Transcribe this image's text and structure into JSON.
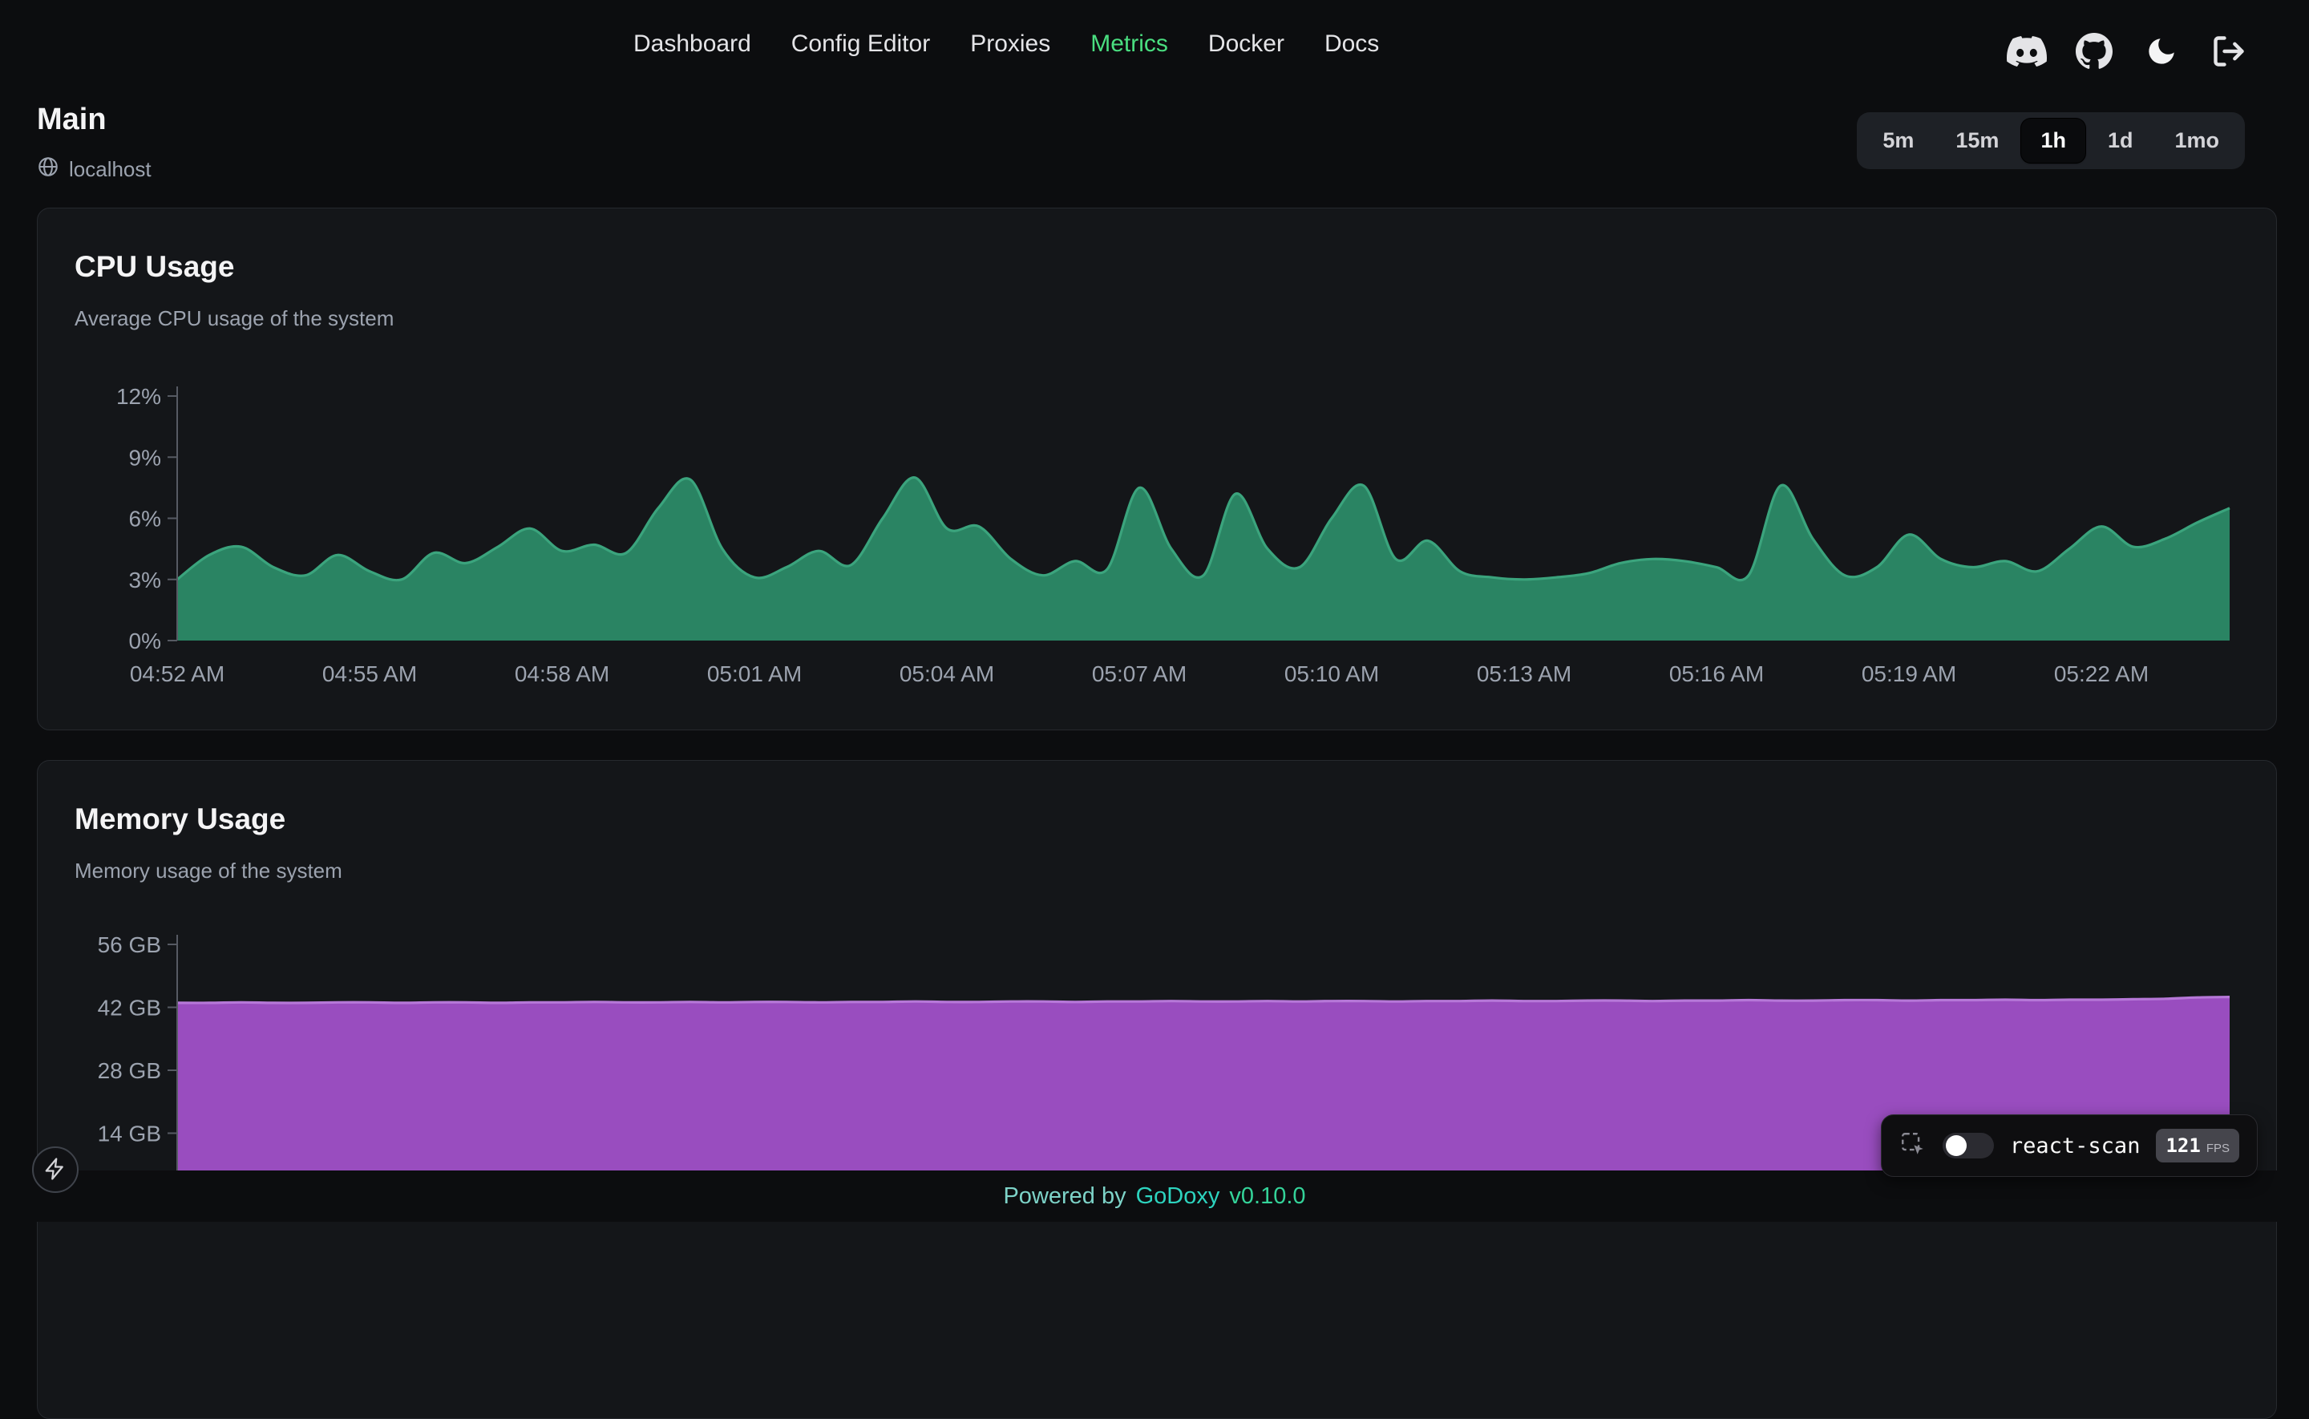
{
  "nav": {
    "items": [
      {
        "label": "Dashboard",
        "active": false
      },
      {
        "label": "Config Editor",
        "active": false
      },
      {
        "label": "Proxies",
        "active": false
      },
      {
        "label": "Metrics",
        "active": true
      },
      {
        "label": "Docker",
        "active": false
      },
      {
        "label": "Docs",
        "active": false
      }
    ],
    "icons": [
      "discord",
      "github",
      "dark-mode-moon",
      "logout"
    ]
  },
  "page": {
    "title": "Main",
    "host": "localhost"
  },
  "time_range": {
    "options": [
      "5m",
      "15m",
      "1h",
      "1d",
      "1mo"
    ],
    "selected": "1h"
  },
  "chart_data": [
    {
      "id": "cpu",
      "type": "area",
      "title": "CPU Usage",
      "subtitle": "Average CPU usage of the system",
      "unit": "%",
      "interval_seconds": 30,
      "ylim": [
        0,
        12
      ],
      "grid": false,
      "legend": "none",
      "y_ticks": [
        {
          "value": 0,
          "label": "0%"
        },
        {
          "value": 3,
          "label": "3%"
        },
        {
          "value": 6,
          "label": "6%"
        },
        {
          "value": 9,
          "label": "9%"
        },
        {
          "value": 12,
          "label": "12%"
        }
      ],
      "x_ticks": [
        {
          "index": 0,
          "label": "04:52 AM"
        },
        {
          "index": 6,
          "label": "04:55 AM"
        },
        {
          "index": 12,
          "label": "04:58 AM"
        },
        {
          "index": 18,
          "label": "05:01 AM"
        },
        {
          "index": 24,
          "label": "05:04 AM"
        },
        {
          "index": 30,
          "label": "05:07 AM"
        },
        {
          "index": 36,
          "label": "05:10 AM"
        },
        {
          "index": 42,
          "label": "05:13 AM"
        },
        {
          "index": 48,
          "label": "05:16 AM"
        },
        {
          "index": 54,
          "label": "05:19 AM"
        },
        {
          "index": 60,
          "label": "05:22 AM"
        }
      ],
      "values": [
        3.0,
        4.2,
        4.6,
        3.6,
        3.2,
        4.2,
        3.4,
        3.0,
        4.3,
        3.8,
        4.6,
        5.5,
        4.4,
        4.7,
        4.3,
        6.5,
        7.9,
        4.5,
        3.1,
        3.6,
        4.4,
        3.7,
        6.0,
        8.0,
        5.5,
        5.6,
        4.0,
        3.2,
        3.9,
        3.5,
        7.5,
        4.5,
        3.2,
        7.2,
        4.5,
        3.6,
        6.0,
        7.6,
        4.0,
        4.9,
        3.4,
        3.1,
        3.0,
        3.1,
        3.3,
        3.8,
        4.0,
        3.9,
        3.6,
        3.2,
        7.6,
        5.0,
        3.2,
        3.6,
        5.2,
        4.0,
        3.6,
        3.9,
        3.4,
        4.5,
        5.6,
        4.6,
        5.0,
        5.8,
        6.5
      ],
      "fill": "#2b8a67",
      "stroke": "#3ba47d"
    },
    {
      "id": "memory",
      "type": "area",
      "title": "Memory Usage",
      "subtitle": "Memory usage of the system",
      "unit": "GB",
      "interval_seconds": 30,
      "ylim": [
        0,
        56
      ],
      "grid": false,
      "legend": "none",
      "y_ticks": [
        {
          "value": 14,
          "label": "14 GB"
        },
        {
          "value": 28,
          "label": "28 GB"
        },
        {
          "value": 42,
          "label": "42 GB"
        },
        {
          "value": 56,
          "label": "56 GB"
        }
      ],
      "x_ticks": [],
      "values": [
        43.0,
        43.0,
        43.1,
        43.0,
        43.0,
        43.1,
        43.1,
        43.0,
        43.1,
        43.1,
        43.0,
        43.1,
        43.1,
        43.2,
        43.1,
        43.1,
        43.2,
        43.1,
        43.2,
        43.2,
        43.1,
        43.2,
        43.2,
        43.3,
        43.2,
        43.2,
        43.3,
        43.3,
        43.2,
        43.3,
        43.3,
        43.4,
        43.3,
        43.3,
        43.4,
        43.3,
        43.4,
        43.4,
        43.3,
        43.4,
        43.4,
        43.5,
        43.4,
        43.4,
        43.5,
        43.5,
        43.4,
        43.5,
        43.5,
        43.6,
        43.5,
        43.5,
        43.6,
        43.6,
        43.5,
        43.6,
        43.6,
        43.7,
        43.6,
        43.7,
        43.7,
        43.8,
        43.9,
        44.2,
        44.3
      ],
      "fill": "#a050c8",
      "stroke": "#b678d8"
    }
  ],
  "footer": {
    "powered_by": "Powered by",
    "brand": "GoDoxy",
    "version": "v0.10.0"
  },
  "react_scan": {
    "label": "react-scan",
    "fps": "121",
    "fps_unit": "FPS",
    "enabled": false
  },
  "colors": {
    "background": "#0c0d0f",
    "card_background": "#141619",
    "accent_green": "#4ade80",
    "axis_line": "#565a63",
    "tick_label": "#9ca3af",
    "cpu_fill": "#2b8a67",
    "cpu_stroke": "#3ba47d",
    "memory_fill": "#a050c8",
    "memory_stroke": "#b678d8",
    "brand_teal": "#2dd4bf"
  }
}
